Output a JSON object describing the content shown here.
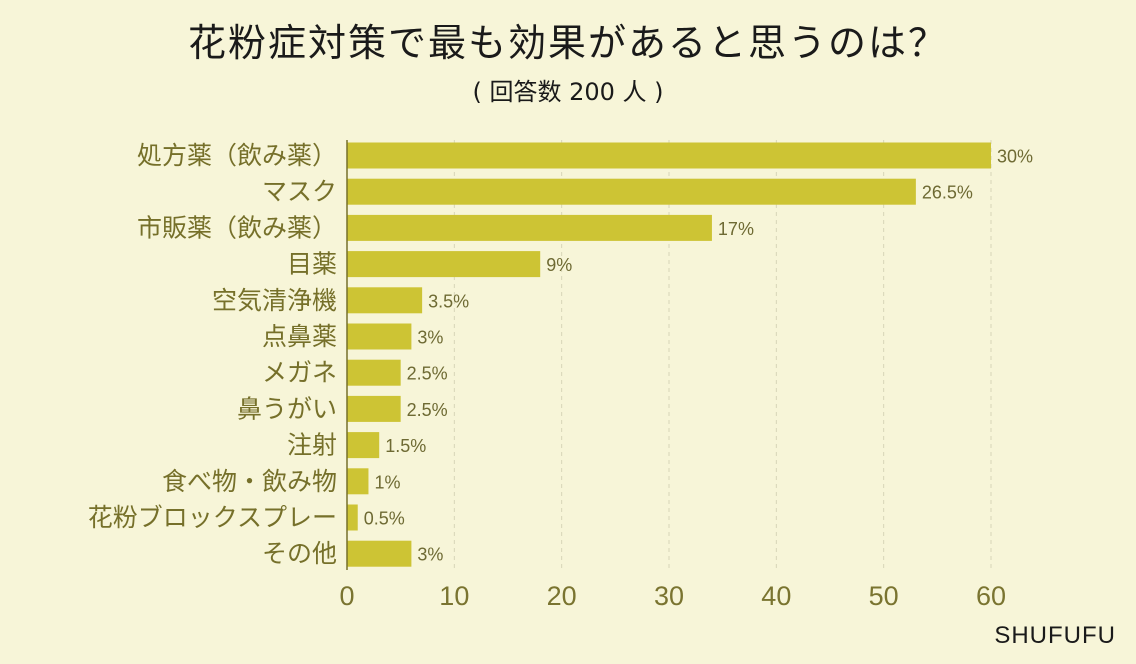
{
  "header": {
    "title": "花粉症対策で最も効果があると思うのは？",
    "subtitle": "( 回答数 200 人 )"
  },
  "branding": {
    "name": "SHUFUFU"
  },
  "colors": {
    "background": "#f7f5d8",
    "bar": "#cdc434",
    "category_text": "#76702a",
    "value_text": "#6e6a33",
    "tick_text": "#7a7430",
    "grid": "#d7d5b8"
  },
  "chart_data": {
    "type": "bar",
    "orientation": "horizontal",
    "title": "花粉症対策で最も効果があると思うのは？",
    "subtitle": "( 回答数 200 人 )",
    "categories": [
      "処方薬（飲み薬）",
      "マスク",
      "市販薬（飲み薬）",
      "目薬",
      "空気清浄機",
      "点鼻薬",
      "メガネ",
      "鼻うがい",
      "注射",
      "食べ物・飲み物",
      "花粉ブロックスプレー",
      "その他"
    ],
    "values": [
      60,
      53,
      34,
      18,
      7,
      6,
      5,
      5,
      3,
      2,
      1,
      6
    ],
    "data_labels": [
      "30%",
      "26.5%",
      "17%",
      "9%",
      "3.5%",
      "3%",
      "2.5%",
      "2.5%",
      "1.5%",
      "1%",
      "0.5%",
      "3%"
    ],
    "xlim": [
      0,
      60
    ],
    "xticks": [
      0,
      10,
      20,
      30,
      40,
      50,
      60
    ],
    "xlabel": "",
    "ylabel": "",
    "grid": true
  }
}
